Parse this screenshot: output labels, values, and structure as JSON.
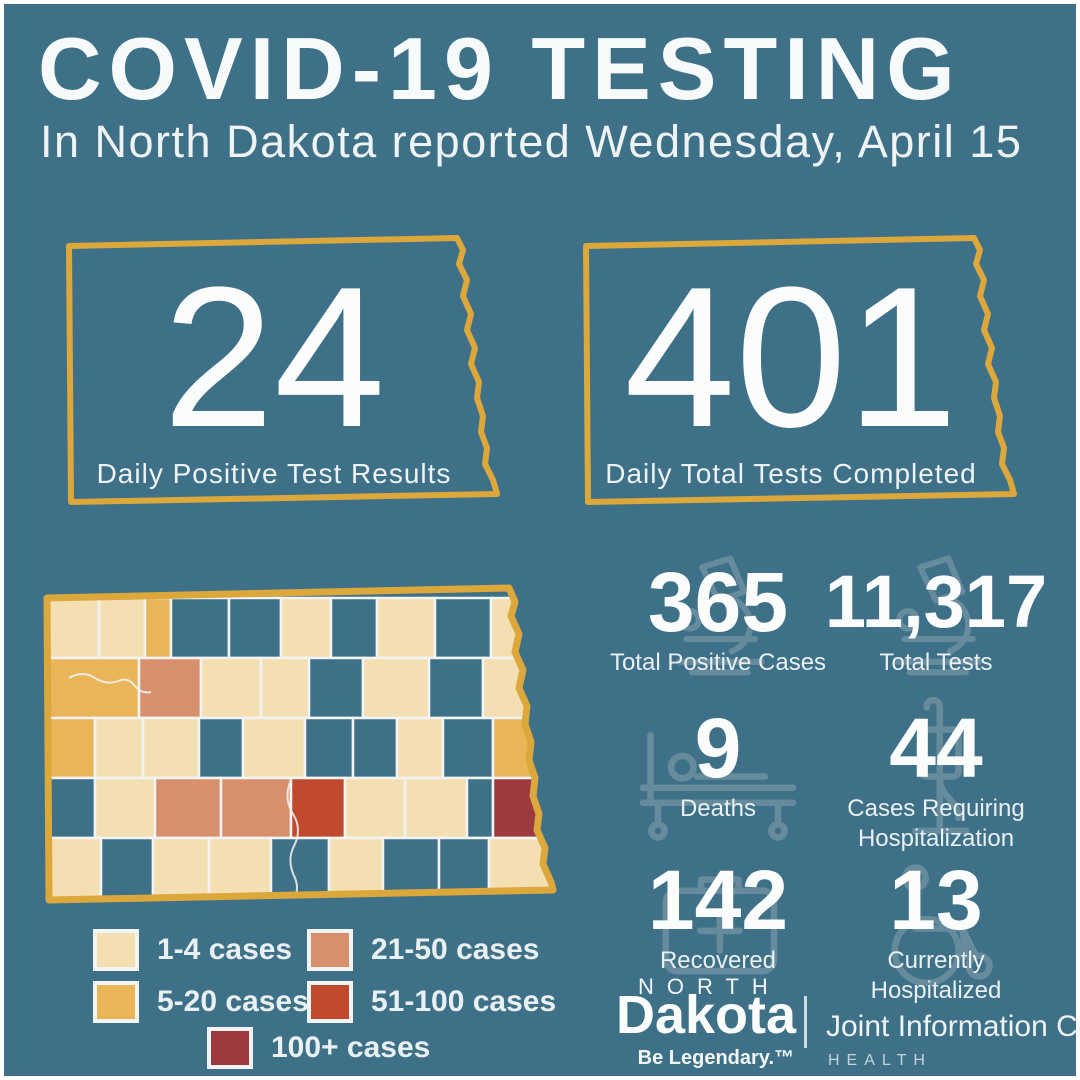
{
  "page": {
    "background": "#3e7088",
    "accent_gold": "#dca73b",
    "text_white": "#f7fafa",
    "ghost_icon_color": "#8fa7b0"
  },
  "header": {
    "title": "COVID-19 TESTING",
    "subtitle": "In North Dakota reported Wednesday, April 15"
  },
  "daily_boxes": [
    {
      "value": "24",
      "label": "Daily Positive Test Results"
    },
    {
      "value": "401",
      "label": "Daily Total Tests Completed"
    }
  ],
  "stats": [
    {
      "value": "365",
      "label": "Total Positive Cases",
      "icon": "microscope-icon"
    },
    {
      "value": "11,317",
      "label": "Total Tests",
      "icon": "microscope-icon"
    },
    {
      "value": "9",
      "label": "Deaths",
      "icon": "hospital-bed-icon"
    },
    {
      "value": "44",
      "label": "Cases Requiring\nHospitalization",
      "icon": "iv-stand-icon"
    },
    {
      "value": "142",
      "label": "Recovered",
      "icon": "first-aid-kit-icon"
    },
    {
      "value": "13",
      "label": "Currently\nHospitalized",
      "icon": "wheelchair-icon"
    }
  ],
  "legend": [
    {
      "label": "1-4 cases",
      "color": "#f4dfb3"
    },
    {
      "label": "5-20 cases",
      "color": "#e9b558"
    },
    {
      "label": "21-50 cases",
      "color": "#d8906c"
    },
    {
      "label": "51-100 cases",
      "color": "#c04a2e"
    },
    {
      "label": "100+ cases",
      "color": "#9d3a40"
    }
  ],
  "map": {
    "border_color": "#dca73b",
    "county_stroke": "#f2f4f3",
    "palette": [
      "#3e7088",
      "#f4dfb3",
      "#e9b558",
      "#d8906c",
      "#c04a2e",
      "#9d3a40"
    ],
    "palette_meaning": [
      "no reported cases",
      "1-4 cases",
      "5-20 cases",
      "21-50 cases",
      "51-100 cases",
      "100+ cases"
    ],
    "cells": [
      [
        8,
        16,
        52,
        60,
        1
      ],
      [
        60,
        16,
        46,
        60,
        1
      ],
      [
        106,
        16,
        26,
        60,
        2
      ],
      [
        132,
        16,
        58,
        60,
        0
      ],
      [
        190,
        16,
        52,
        60,
        0
      ],
      [
        242,
        16,
        50,
        60,
        1
      ],
      [
        292,
        16,
        46,
        60,
        0
      ],
      [
        338,
        16,
        58,
        60,
        1
      ],
      [
        396,
        16,
        56,
        60,
        0
      ],
      [
        452,
        16,
        58,
        60,
        1
      ],
      [
        8,
        76,
        92,
        60,
        2
      ],
      [
        100,
        76,
        62,
        60,
        3
      ],
      [
        162,
        76,
        60,
        60,
        1
      ],
      [
        222,
        76,
        48,
        60,
        1
      ],
      [
        270,
        76,
        54,
        60,
        0
      ],
      [
        324,
        76,
        66,
        60,
        1
      ],
      [
        390,
        76,
        54,
        60,
        0
      ],
      [
        444,
        76,
        66,
        60,
        1
      ],
      [
        8,
        136,
        48,
        60,
        2
      ],
      [
        56,
        136,
        48,
        60,
        1
      ],
      [
        104,
        136,
        56,
        60,
        1
      ],
      [
        160,
        136,
        44,
        60,
        0
      ],
      [
        204,
        136,
        62,
        60,
        1
      ],
      [
        266,
        136,
        48,
        60,
        0
      ],
      [
        314,
        136,
        44,
        60,
        0
      ],
      [
        358,
        136,
        46,
        60,
        1
      ],
      [
        404,
        136,
        50,
        60,
        0
      ],
      [
        454,
        136,
        56,
        60,
        2
      ],
      [
        8,
        196,
        48,
        60,
        0
      ],
      [
        56,
        196,
        60,
        60,
        1
      ],
      [
        116,
        196,
        66,
        60,
        3
      ],
      [
        182,
        196,
        70,
        60,
        3
      ],
      [
        252,
        196,
        54,
        60,
        4
      ],
      [
        306,
        196,
        60,
        60,
        1
      ],
      [
        366,
        196,
        62,
        60,
        1
      ],
      [
        428,
        196,
        26,
        60,
        0
      ],
      [
        454,
        196,
        56,
        60,
        5
      ],
      [
        8,
        256,
        54,
        62,
        1
      ],
      [
        62,
        256,
        52,
        62,
        0
      ],
      [
        114,
        256,
        56,
        62,
        1
      ],
      [
        170,
        256,
        62,
        62,
        1
      ],
      [
        232,
        256,
        58,
        62,
        0
      ],
      [
        290,
        256,
        54,
        62,
        1
      ],
      [
        344,
        256,
        56,
        62,
        0
      ],
      [
        400,
        256,
        50,
        62,
        0
      ],
      [
        450,
        256,
        60,
        62,
        1
      ]
    ]
  },
  "logo": {
    "north": "NORTH",
    "dakota": "Dakota",
    "tagline": "Be Legendary.™",
    "org": "Joint Information Center",
    "dept": "HEALTH"
  },
  "chart_data": {
    "type": "choropleth",
    "title": "COVID-19 Testing in North Dakota reported Wednesday, April 15",
    "region": "North Dakota counties shaded by COVID-19 case count",
    "daily_positive_test_results": 24,
    "daily_total_tests_completed": 401,
    "total_positive_cases": 365,
    "total_tests": 11317,
    "deaths": 9,
    "cases_requiring_hospitalization": 44,
    "recovered": 142,
    "currently_hospitalized": 13,
    "legend_bins": [
      "1-4 cases",
      "5-20 cases",
      "21-50 cases",
      "51-100 cases",
      "100+ cases"
    ],
    "legend_colors": [
      "#f4dfb3",
      "#e9b558",
      "#d8906c",
      "#c04a2e",
      "#9d3a40"
    ],
    "legend_position": "bottom-left",
    "notable_regions": {
      "west_block": "5-20 cases",
      "northwest_county": "21-50 cases",
      "central_county": "51-100 cases",
      "east_county": "100+ cases"
    }
  }
}
